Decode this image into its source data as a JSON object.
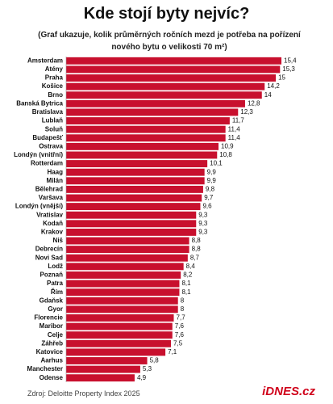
{
  "chart_data": {
    "type": "hbar",
    "title": "Kde stojí byty nejvíc?",
    "subtitle": "(Graf ukazuje, kolik průměrných ročních mezd je potřeba na pořízení nového bytu o velikosti 70 m²)",
    "source": "Zdroj: Deloitte Property Index 2025",
    "logo": "iDNES.cz",
    "color": "#c8102e",
    "categories": [
      "Amsterdam",
      "Atény",
      "Praha",
      "Košice",
      "Brno",
      "Banská Bytrica",
      "Bratislava",
      "Lublaň",
      "Soluň",
      "Budapešť",
      "Ostrava",
      "Londýn (vnitřní)",
      "Rotterdam",
      "Haag",
      "Milán",
      "Bělehrad",
      "Varšava",
      "Londýn (vnější)",
      "Vratislav",
      "Kodaň",
      "Krakov",
      "Niš",
      "Debrecín",
      "Novi Sad",
      "Lodž",
      "Poznaň",
      "Patra",
      "Řím",
      "Gdaňsk",
      "Gyor",
      "Florencie",
      "Maribor",
      "Celje",
      "Záhřeb",
      "Katovice",
      "Aarhus",
      "Manchester",
      "Odense"
    ],
    "values": [
      15.4,
      15.3,
      15,
      14.2,
      14,
      12.8,
      12.3,
      11.7,
      11.4,
      11.4,
      10.9,
      10.8,
      10.1,
      9.9,
      9.9,
      9.8,
      9.7,
      9.6,
      9.3,
      9.3,
      9.3,
      8.8,
      8.8,
      8.7,
      8.4,
      8.2,
      8.1,
      8.1,
      8,
      8,
      7.7,
      7.6,
      7.6,
      7.5,
      7.1,
      5.8,
      5.3,
      4.9
    ],
    "value_labels": [
      "15,4",
      "15,3",
      "15",
      "14,2",
      "14",
      "12,8",
      "12,3",
      "11,7",
      "11,4",
      "11,4",
      "10,9",
      "10,8",
      "10,1",
      "9,9",
      "9,9",
      "9,8",
      "9,7",
      "9,6",
      "9,3",
      "9,3",
      "9,3",
      "8,8",
      "8,8",
      "8,7",
      "8,4",
      "8,2",
      "8,1",
      "8,1",
      "8",
      "8",
      "7,7",
      "7,6",
      "7,6",
      "7,5",
      "7,1",
      "5,8",
      "5,3",
      "4,9"
    ]
  }
}
